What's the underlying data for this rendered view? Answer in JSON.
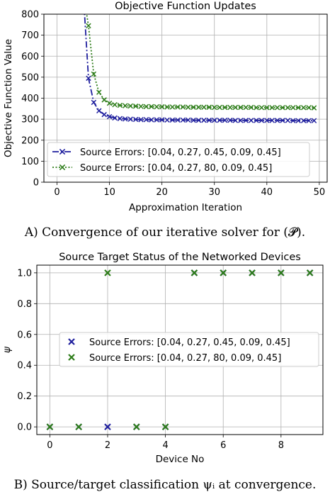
{
  "chart_data": [
    {
      "type": "line",
      "title": "Objective Function Updates",
      "xlabel": "Approximation Iteration",
      "ylabel": "Objective Function Value",
      "xlim": [
        -2.5,
        51.5
      ],
      "ylim": [
        0,
        800
      ],
      "xticks": [
        "0",
        "10",
        "20",
        "30",
        "40",
        "50"
      ],
      "yticks": [
        "0",
        "100",
        "200",
        "300",
        "400",
        "500",
        "600",
        "700",
        "800"
      ],
      "grid": true,
      "legend_position": "lower-left",
      "series": [
        {
          "name": "Source Errors: [0.04, 0.27, 0.45, 0.09, 0.45]",
          "color": "#1f1f9e",
          "style": "dashdot",
          "marker": "x",
          "x": [
            5,
            6,
            7,
            8,
            9,
            10,
            11,
            12,
            13,
            14,
            15,
            16,
            17,
            18,
            19,
            20,
            21,
            22,
            23,
            24,
            25,
            26,
            27,
            28,
            29,
            30,
            31,
            32,
            33,
            34,
            35,
            36,
            37,
            38,
            39,
            40,
            41,
            42,
            43,
            44,
            45,
            46,
            47,
            48,
            49
          ],
          "y": [
            900,
            495,
            380,
            340,
            322,
            312,
            306,
            303,
            301,
            300,
            299,
            298,
            298,
            297,
            297,
            297,
            296,
            296,
            296,
            296,
            296,
            295,
            295,
            295,
            295,
            295,
            295,
            295,
            295,
            294,
            294,
            294,
            294,
            294,
            294,
            294,
            294,
            294,
            294,
            294,
            293,
            293,
            293,
            293,
            293
          ]
        },
        {
          "name": "Source Errors: [0.04, 0.27, 80, 0.09, 0.45]",
          "color": "#2e7d1a",
          "style": "dotted",
          "marker": "x",
          "x": [
            5,
            6,
            7,
            8,
            9,
            10,
            11,
            12,
            13,
            14,
            15,
            16,
            17,
            18,
            19,
            20,
            21,
            22,
            23,
            24,
            25,
            26,
            27,
            28,
            29,
            30,
            31,
            32,
            33,
            34,
            35,
            36,
            37,
            38,
            39,
            40,
            41,
            42,
            43,
            44,
            45,
            46,
            47,
            48,
            49
          ],
          "y": [
            900,
            745,
            515,
            428,
            392,
            376,
            369,
            366,
            364,
            363,
            362,
            361,
            360,
            360,
            359,
            359,
            358,
            358,
            358,
            358,
            357,
            357,
            357,
            357,
            357,
            356,
            356,
            356,
            356,
            356,
            356,
            356,
            356,
            355,
            355,
            355,
            355,
            355,
            355,
            355,
            355,
            355,
            355,
            355,
            354
          ]
        }
      ]
    },
    {
      "type": "scatter",
      "title": "Source Target Status of the Networked Devices",
      "xlabel": "Device No",
      "ylabel": "ψ",
      "xlim": [
        -0.45,
        9.45
      ],
      "ylim": [
        -0.05,
        1.05
      ],
      "xticks": [
        "0",
        "2",
        "4",
        "6",
        "8"
      ],
      "yticks": [
        "0.0",
        "0.2",
        "0.4",
        "0.6",
        "0.8",
        "1.0"
      ],
      "grid": true,
      "legend_position": "center-right",
      "series": [
        {
          "name": "Source Errors: [0.04, 0.27, 0.45, 0.09, 0.45]",
          "color": "#1f1f9e",
          "marker": "x",
          "x": [
            0,
            1,
            2,
            3,
            4,
            5,
            6,
            7,
            8,
            9
          ],
          "y": [
            0,
            0,
            0,
            0,
            0,
            1,
            1,
            1,
            1,
            1
          ]
        },
        {
          "name": "Source Errors: [0.04, 0.27, 80, 0.09, 0.45]",
          "color": "#2e7d1a",
          "marker": "x",
          "x": [
            0,
            1,
            2,
            3,
            4,
            5,
            6,
            7,
            8,
            9
          ],
          "y": [
            0,
            0,
            1,
            0,
            0,
            1,
            1,
            1,
            1,
            1
          ]
        }
      ]
    }
  ],
  "captions": {
    "a": "A) Convergence of our iterative solver for (𝓟).",
    "b": "B) Source/target classification ψᵢ at convergence."
  }
}
